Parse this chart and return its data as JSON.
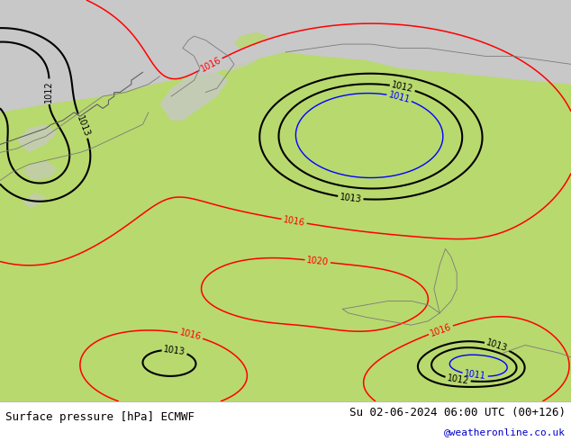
{
  "title_left": "Surface pressure [hPa] ECMWF",
  "title_right": "Su 02-06-2024 06:00 UTC (00+126)",
  "credit": "@weatheronline.co.uk",
  "land_color": "#b8d96e",
  "sea_color": "#c8c8c8",
  "fig_color": "#ffffff",
  "black_levels": [
    1012,
    1013
  ],
  "red_levels": [
    1016,
    1020
  ],
  "blue_levels": [
    1011
  ],
  "footer_fs": 9,
  "credit_fs": 8,
  "credit_color": "#0000cc",
  "label_fs": 7
}
